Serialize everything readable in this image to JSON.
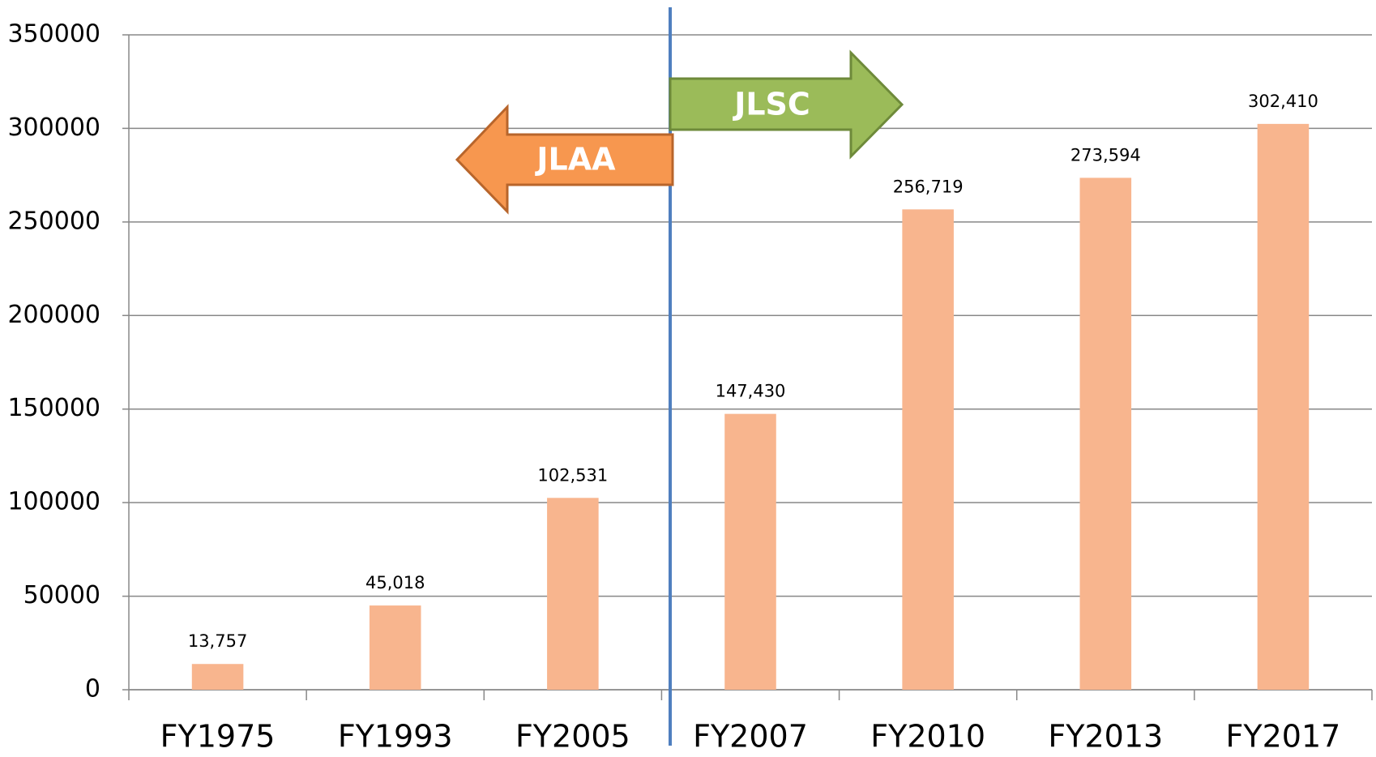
{
  "chart_data": {
    "type": "bar",
    "categories": [
      "FY1975",
      "FY1993",
      "FY2005",
      "FY2007",
      "FY2010",
      "FY2013",
      "FY2017"
    ],
    "values": [
      13757,
      45018,
      102531,
      147430,
      256719,
      273594,
      302410
    ],
    "value_labels": [
      "13,757",
      "45,018",
      "102,531",
      "147,430",
      "256,719",
      "273,594",
      "302,410"
    ],
    "color": "#f8b58e",
    "ylim": [
      0,
      350000
    ],
    "yticks": [
      0,
      50000,
      100000,
      150000,
      200000,
      250000,
      300000,
      350000
    ],
    "grid": true,
    "annotations": [
      {
        "text": "JLAA"
      },
      {
        "text": "JLSC"
      }
    ]
  }
}
